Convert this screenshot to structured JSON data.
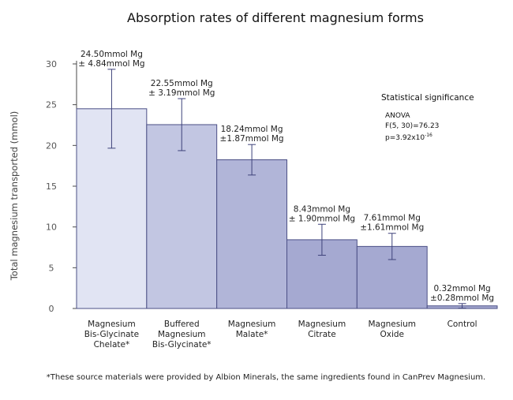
{
  "chart_data": {
    "type": "bar",
    "title": "Absorption rates of different magnesium forms",
    "ylabel": "Total magnesium transported (mmol)",
    "xlabel": "",
    "ylim": [
      0,
      30
    ],
    "yticks": [
      0,
      5,
      10,
      15,
      20,
      25,
      30
    ],
    "grid": false,
    "categories": [
      [
        "Magnesium",
        "Bis-Glycinate",
        "Chelate*"
      ],
      [
        "Buffered",
        "Magnesium",
        "Bis-Glycinate*"
      ],
      [
        "Magnesium",
        "Malate*"
      ],
      [
        "Magnesium",
        "Citrate"
      ],
      [
        "Magnesium",
        "Oxide"
      ],
      [
        "Control"
      ]
    ],
    "values": [
      24.5,
      22.55,
      18.24,
      8.43,
      7.61,
      0.32
    ],
    "errors": [
      4.84,
      3.19,
      1.87,
      1.9,
      1.61,
      0.28
    ],
    "data_labels": [
      [
        "24.50mmol Mg",
        "± 4.84mmol Mg"
      ],
      [
        "22.55mmol Mg",
        "± 3.19mmol Mg"
      ],
      [
        "18.24mmol Mg",
        "±1.87mmol Mg"
      ],
      [
        "8.43mmol Mg",
        "± 1.90mmol Mg"
      ],
      [
        "7.61mmol Mg",
        "±1.61mmol Mg"
      ],
      [
        "0.32mmol Mg",
        "±0.28mmol Mg"
      ]
    ],
    "bar_colors": [
      "#e1e4f3",
      "#c2c6e2",
      "#b1b5d8",
      "#a5a9d1",
      "#a5a9d1",
      "#a5a9d1"
    ],
    "stats": {
      "heading": "Statistical significance",
      "test": "ANOVA",
      "f_value": "F(5, 30)=76.23",
      "p_base": "p=3.92x10",
      "p_exp": "-16"
    },
    "footnote": "*These source materials were provided by Albion Minerals, the same ingredients found in CanPrev Magnesium."
  }
}
